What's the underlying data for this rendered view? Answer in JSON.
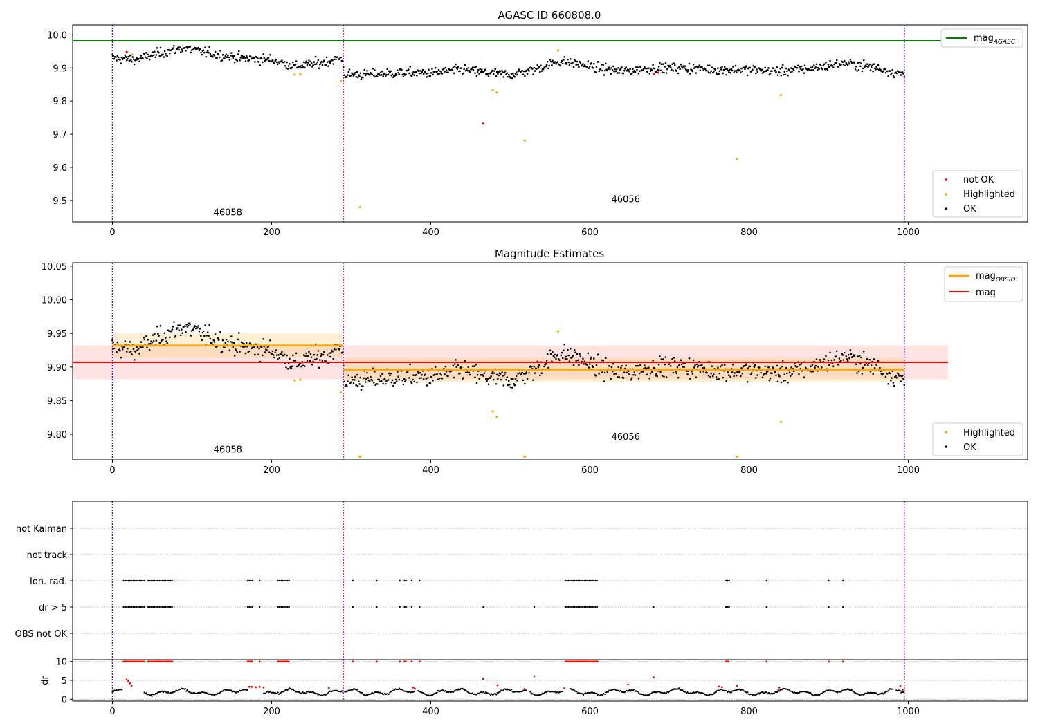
{
  "chart_data": [
    {
      "type": "scatter",
      "title": "AGASC ID 660808.0",
      "xlabel": "",
      "ylabel": "",
      "xlim": [
        -50,
        1150
      ],
      "ylim": [
        9.435,
        10.03
      ],
      "x_ticks": [
        0,
        200,
        400,
        600,
        800,
        1000
      ],
      "x_tick_labels": [
        "0",
        "200",
        "400",
        "600",
        "800",
        "1000"
      ],
      "y_ticks": [
        9.5,
        9.6,
        9.7,
        9.8,
        9.9,
        10.0
      ],
      "y_tick_labels": [
        "9.5",
        "9.6",
        "9.7",
        "9.8",
        "9.9",
        "10.0"
      ],
      "hline": {
        "name": "mag_AGASC",
        "value": 9.982,
        "color": "#008000"
      },
      "vlines": [
        0,
        290,
        995
      ],
      "vline_color": "#7f00bf",
      "obsid_labels": [
        {
          "text": "46058",
          "x": 145,
          "y": 9.455
        },
        {
          "text": "46056",
          "x": 645,
          "y": 9.495
        }
      ],
      "legend_line": {
        "label": "mag",
        "sub": "AGASC",
        "position": "upper right"
      },
      "legend_markers": {
        "position": "lower right",
        "entries": [
          {
            "label": "not OK",
            "color": "#ff0000"
          },
          {
            "label": "Highlighted",
            "color": "#ffa500"
          },
          {
            "label": "OK",
            "color": "#000000"
          }
        ]
      },
      "ok_trend": [
        [
          0,
          9.93
        ],
        [
          30,
          9.925
        ],
        [
          60,
          9.945
        ],
        [
          90,
          9.96
        ],
        [
          120,
          9.945
        ],
        [
          160,
          9.93
        ],
        [
          200,
          9.925
        ],
        [
          230,
          9.905
        ],
        [
          260,
          9.915
        ],
        [
          289,
          9.93
        ],
        [
          291,
          9.88
        ],
        [
          320,
          9.88
        ],
        [
          360,
          9.885
        ],
        [
          400,
          9.885
        ],
        [
          440,
          9.895
        ],
        [
          470,
          9.885
        ],
        [
          500,
          9.88
        ],
        [
          530,
          9.895
        ],
        [
          560,
          9.92
        ],
        [
          580,
          9.915
        ],
        [
          610,
          9.9
        ],
        [
          640,
          9.89
        ],
        [
          680,
          9.9
        ],
        [
          720,
          9.9
        ],
        [
          760,
          9.895
        ],
        [
          800,
          9.895
        ],
        [
          840,
          9.89
        ],
        [
          880,
          9.9
        ],
        [
          920,
          9.915
        ],
        [
          960,
          9.9
        ],
        [
          995,
          9.88
        ]
      ],
      "ok_spread": 0.013,
      "ok_count": 940,
      "highlighted": [
        [
          229,
          9.88
        ],
        [
          236,
          9.881
        ],
        [
          287,
          9.862
        ],
        [
          311,
          9.48
        ],
        [
          478,
          9.834
        ],
        [
          483,
          9.826
        ],
        [
          518,
          9.681
        ],
        [
          560,
          9.953
        ],
        [
          785,
          9.625
        ],
        [
          840,
          9.818
        ],
        [
          25,
          9.94
        ]
      ],
      "not_ok": [
        [
          18,
          9.948
        ],
        [
          466,
          9.732
        ],
        [
          680,
          9.882
        ],
        [
          686,
          9.886
        ]
      ]
    },
    {
      "type": "scatter",
      "title": "Magnitude Estimates",
      "xlabel": "",
      "ylabel": "",
      "xlim": [
        -50,
        1150
      ],
      "ylim": [
        9.762,
        10.055
      ],
      "x_ticks": [
        0,
        200,
        400,
        600,
        800,
        1000
      ],
      "x_tick_labels": [
        "0",
        "200",
        "400",
        "600",
        "800",
        "1000"
      ],
      "y_ticks": [
        9.8,
        9.85,
        9.9,
        9.95,
        10.0,
        10.05
      ],
      "y_tick_labels": [
        "9.80",
        "9.85",
        "9.90",
        "9.95",
        "10.00",
        "10.05"
      ],
      "mag": {
        "value": 9.907,
        "band": [
          9.882,
          9.932
        ],
        "x_range": [
          -50,
          1050
        ],
        "color": "#ff0000"
      },
      "mag_obsid": [
        {
          "x_range": [
            0,
            290
          ],
          "value": 9.932,
          "band": [
            9.914,
            9.95
          ]
        },
        {
          "x_range": [
            290,
            995
          ],
          "value": 9.896,
          "band": [
            9.878,
            9.914
          ]
        }
      ],
      "mag_obsid_color": "#ffa500",
      "vlines": [
        0,
        290,
        995
      ],
      "vline_color": "#7f00bf",
      "obsid_labels": [
        {
          "text": "46058",
          "x": 145,
          "y": 9.773
        },
        {
          "text": "46056",
          "x": 645,
          "y": 9.792
        }
      ],
      "legend_lines": {
        "position": "upper right",
        "entries": [
          {
            "label": "mag",
            "sub": "OBSID",
            "color": "#ffa500"
          },
          {
            "label": "mag",
            "sub": "",
            "color": "#ff0000"
          }
        ]
      },
      "legend_markers": {
        "position": "lower right",
        "entries": [
          {
            "label": "Highlighted",
            "color": "#ffa500"
          },
          {
            "label": "OK",
            "color": "#000000"
          }
        ]
      },
      "highlighted_in_range": [
        [
          229,
          9.88
        ],
        [
          236,
          9.881
        ],
        [
          287,
          9.862
        ],
        [
          478,
          9.834
        ],
        [
          483,
          9.826
        ],
        [
          560,
          9.953
        ],
        [
          840,
          9.818
        ]
      ],
      "below_range_markers": [
        311,
        518,
        785
      ]
    },
    {
      "type": "scatter",
      "title": "",
      "xlabel": "",
      "ylabel": "",
      "xlim": [
        -50,
        1150
      ],
      "categories": [
        "not Kalman",
        "not track",
        "Ion. rad.",
        "dr > 5",
        "OBS not OK"
      ],
      "vlines": [
        0,
        290,
        995
      ],
      "vline_color": "#7f00bf",
      "flag_runs": {
        "Ion. rad.": [
          [
            14,
            40
          ],
          [
            45,
            76
          ],
          [
            170,
            176
          ],
          [
            185,
            186
          ],
          [
            208,
            222
          ],
          [
            302,
            303
          ],
          [
            332,
            333
          ],
          [
            361,
            362
          ],
          [
            367,
            369
          ],
          [
            376,
            377
          ],
          [
            386,
            387
          ],
          [
            569,
            610
          ],
          [
            771,
            775
          ],
          [
            822,
            823
          ],
          [
            900,
            901
          ],
          [
            918,
            919
          ]
        ],
        "dr > 5": [
          [
            14,
            40
          ],
          [
            45,
            76
          ],
          [
            170,
            176
          ],
          [
            185,
            186
          ],
          [
            208,
            222
          ],
          [
            302,
            303
          ],
          [
            332,
            333
          ],
          [
            361,
            362
          ],
          [
            367,
            369
          ],
          [
            376,
            377
          ],
          [
            386,
            387
          ],
          [
            466,
            467
          ],
          [
            530,
            531
          ],
          [
            569,
            610
          ],
          [
            680,
            681
          ],
          [
            771,
            775
          ],
          [
            822,
            823
          ],
          [
            900,
            901
          ],
          [
            918,
            919
          ]
        ]
      }
    },
    {
      "type": "scatter",
      "title": "",
      "xlabel": "",
      "ylabel": "dr",
      "xlim": [
        -50,
        1150
      ],
      "ylim": [
        -0.5,
        10.5
      ],
      "y_ticks": [
        0,
        5,
        10
      ],
      "y_tick_labels": [
        "0",
        "5",
        "10"
      ],
      "x_ticks": [
        0,
        200,
        400,
        600,
        800,
        1000
      ],
      "x_tick_labels": [
        "0",
        "200",
        "400",
        "600",
        "800",
        "1000"
      ],
      "vlines": [
        0,
        290,
        995
      ],
      "vline_color": "#7f00bf",
      "ok_segments": [
        [
          0,
          13
        ],
        [
          40,
          170
        ],
        [
          190,
          290
        ],
        [
          292,
          380
        ],
        [
          384,
          520
        ],
        [
          525,
          567
        ],
        [
          575,
          980
        ],
        [
          985,
          995
        ]
      ],
      "ok_baseline": 1.9,
      "red_capped_runs": [
        [
          14,
          40
        ],
        [
          45,
          76
        ],
        [
          170,
          176
        ],
        [
          185,
          186
        ],
        [
          208,
          222
        ],
        [
          302,
          303
        ],
        [
          332,
          333
        ],
        [
          361,
          362
        ],
        [
          367,
          369
        ],
        [
          376,
          377
        ],
        [
          386,
          387
        ],
        [
          569,
          610
        ],
        [
          771,
          775
        ],
        [
          822,
          823
        ],
        [
          900,
          901
        ],
        [
          918,
          919
        ]
      ],
      "red_points": [
        [
          18,
          5.2
        ],
        [
          20,
          4.8
        ],
        [
          22,
          4.2
        ],
        [
          24,
          3.6
        ],
        [
          172,
          3.3
        ],
        [
          175,
          3.3
        ],
        [
          180,
          3.2
        ],
        [
          185,
          3.3
        ],
        [
          190,
          3.1
        ],
        [
          272,
          3.0
        ],
        [
          378,
          3.1
        ],
        [
          380,
          2.8
        ],
        [
          466,
          5.4
        ],
        [
          484,
          3.7
        ],
        [
          518,
          2.7
        ],
        [
          530,
          6.1
        ],
        [
          568,
          2.9
        ],
        [
          648,
          3.9
        ],
        [
          680,
          5.8
        ],
        [
          762,
          3.4
        ],
        [
          766,
          3.2
        ],
        [
          785,
          3.6
        ],
        [
          838,
          3.1
        ],
        [
          990,
          3.5
        ],
        [
          993,
          2.5
        ]
      ]
    }
  ]
}
